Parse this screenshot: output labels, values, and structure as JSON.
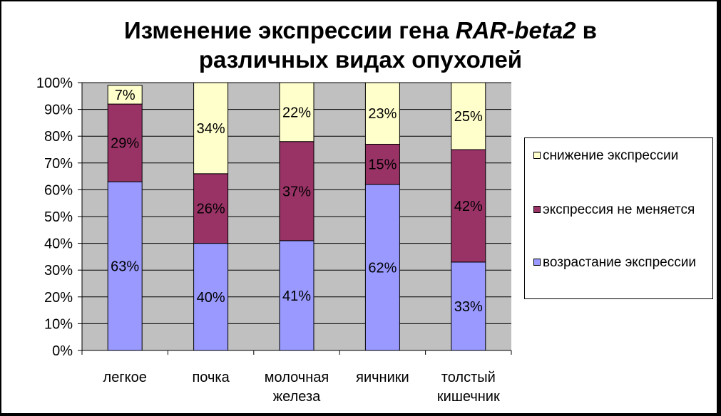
{
  "title": {
    "line1_pre": "Изменение экспрессии гена ",
    "line1_gene": "RAR-beta2",
    "line1_post": " в",
    "line2": "различных видах опухолей"
  },
  "colors": {
    "plot_bg": "#C0C0C0",
    "decrease": "#FFFFCC",
    "no_change": "#993366",
    "increase": "#9999FF"
  },
  "legend": {
    "items": [
      {
        "label": "снижение экспрессии",
        "color": "#FFFFCC"
      },
      {
        "label": "экспрессия не меняется",
        "color": "#993366"
      },
      {
        "label": "возрастание экспрессии",
        "color": "#9999FF"
      }
    ]
  },
  "chart_data": {
    "type": "bar",
    "stacked": true,
    "percent_stacked": true,
    "grid": true,
    "legend_position": "right",
    "categories": [
      "легкое",
      "почка",
      "молочная железа",
      "яичники",
      "толстый кишечник"
    ],
    "category_lines": [
      [
        "легкое"
      ],
      [
        "почка"
      ],
      [
        "молочная",
        "железа"
      ],
      [
        "яичники"
      ],
      [
        "толстый",
        "кишечник"
      ]
    ],
    "series": [
      {
        "name": "возрастание экспрессии",
        "values": [
          63,
          40,
          41,
          62,
          33
        ],
        "labels": [
          "63%",
          "40%",
          "41%",
          "62%",
          "33%"
        ],
        "color": "#9999FF"
      },
      {
        "name": "экспрессия не меняется",
        "values": [
          29,
          26,
          37,
          15,
          42
        ],
        "labels": [
          "29%",
          "26%",
          "37%",
          "15%",
          "42%"
        ],
        "color": "#993366"
      },
      {
        "name": "снижение экспрессии",
        "values": [
          7,
          34,
          22,
          23,
          25
        ],
        "labels": [
          "7%",
          "34%",
          "22%",
          "23%",
          "25%"
        ],
        "color": "#FFFFCC"
      }
    ],
    "ylim": [
      0,
      100
    ],
    "yticks": [
      "0%",
      "10%",
      "20%",
      "30%",
      "40%",
      "50%",
      "60%",
      "70%",
      "80%",
      "90%",
      "100%"
    ],
    "xlabel": "",
    "ylabel": ""
  }
}
